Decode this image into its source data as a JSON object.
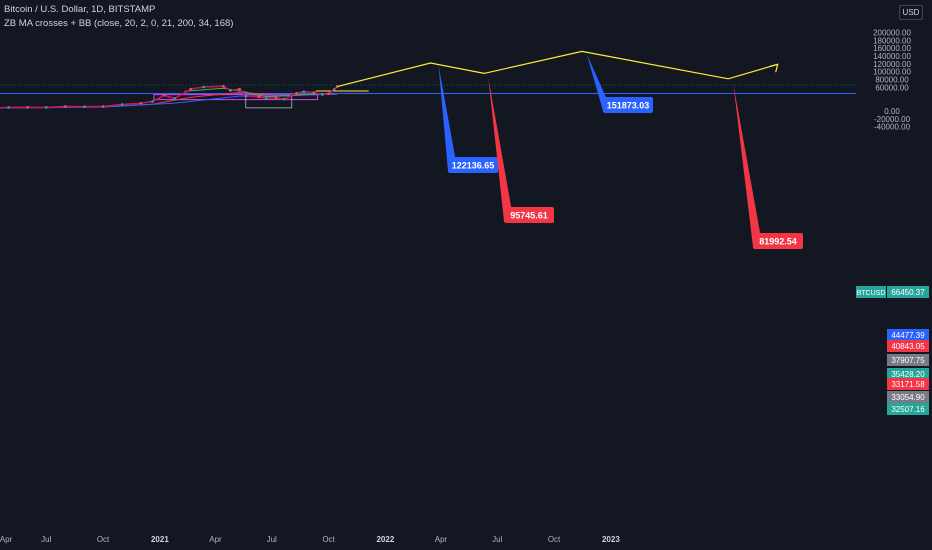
{
  "header": {
    "title": "Bitcoin / U.S. Dollar, 1D, BITSTAMP",
    "indicator": "ZB MA crosses + BB (close, 20, 2, 0, 21, 200, 34, 168)",
    "currency_button": "USD"
  },
  "colors": {
    "background": "#131722",
    "projection_line": "#ffeb3b",
    "blue_label": "#2962ff",
    "red_label": "#f23645",
    "teal_label": "#26a69a",
    "gray_label": "#787b86",
    "horizontal_line": "#2962ff"
  },
  "chart_data": {
    "type": "line",
    "symbol": "BTCUSD",
    "y_axis_ticks": [
      "200000.00",
      "180000.00",
      "160000.00",
      "140000.00",
      "120000.00",
      "100000.00",
      "80000.00",
      "60000.00",
      "0.00",
      "-20000.00",
      "-40000.00"
    ],
    "x_axis_ticks": [
      "Apr",
      "Jul",
      "Oct",
      "2021",
      "Apr",
      "Jul",
      "Oct",
      "2022",
      "Apr",
      "Jul",
      "Oct",
      "2023"
    ],
    "ylim": [
      -45000,
      207000
    ],
    "price_series": {
      "name": "BTCUSD",
      "x": [
        "2020-04-01",
        "2020-05-01",
        "2020-06-01",
        "2020-07-01",
        "2020-08-01",
        "2020-09-01",
        "2020-10-01",
        "2020-11-01",
        "2020-12-01",
        "2020-12-20",
        "2021-01-08",
        "2021-01-25",
        "2021-02-20",
        "2021-03-13",
        "2021-04-14",
        "2021-04-25",
        "2021-05-10",
        "2021-05-20",
        "2021-06-10",
        "2021-06-22",
        "2021-07-08",
        "2021-07-21",
        "2021-08-10",
        "2021-08-22",
        "2021-09-07",
        "2021-09-21",
        "2021-10-01",
        "2021-10-10",
        "2021-10-15"
      ],
      "y": [
        7000,
        9000,
        9400,
        9200,
        11500,
        10800,
        11500,
        16500,
        19500,
        24000,
        40000,
        32000,
        56000,
        61000,
        63000,
        52000,
        56000,
        38000,
        36000,
        32000,
        33500,
        30000,
        45000,
        49000,
        47000,
        42000,
        44000,
        55000,
        62000
      ]
    },
    "projection": {
      "x": [
        "2021-10-15",
        "2022-03-15",
        "2022-06-10",
        "2022-11-15",
        "2023-07-10",
        "2023-09-28"
      ],
      "y": [
        62000,
        122136.65,
        95745.61,
        151873.03,
        81992.54,
        119000
      ]
    },
    "projection_labels": [
      {
        "text": "122136.65",
        "color": "blue"
      },
      {
        "text": "95745.61",
        "color": "red"
      },
      {
        "text": "151873.03",
        "color": "blue"
      },
      {
        "text": "81992.54",
        "color": "red"
      }
    ],
    "price_labels": [
      {
        "text": "66450.37",
        "tag": "BTCUSD",
        "value": 66450.37,
        "color": "teal"
      },
      {
        "text": "44477.39",
        "value": 44477.39,
        "color": "blue"
      },
      {
        "text": "40843.05",
        "value": 40843.05,
        "color": "red"
      },
      {
        "text": "37907.75",
        "value": 37907.75,
        "color": "gray"
      },
      {
        "text": "35428.20",
        "value": 35428.2,
        "color": "teal"
      },
      {
        "text": "33171.58",
        "value": 33171.58,
        "color": "red"
      },
      {
        "text": "33054.90",
        "value": 33054.9,
        "color": "gray"
      },
      {
        "text": "32507.16",
        "value": 32507.16,
        "color": "teal"
      }
    ],
    "horizontal_line_value": 44477.39,
    "last_price_value": 66450.37
  }
}
